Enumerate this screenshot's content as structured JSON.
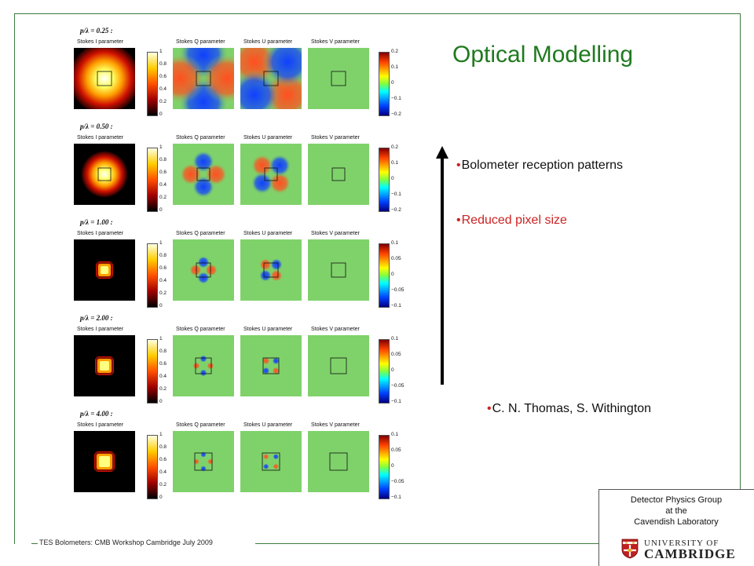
{
  "slide": {
    "title": "Optical Modelling",
    "bullets": [
      {
        "text": "Bolometer reception patterns",
        "style": "black"
      },
      {
        "text": "Reduced pixel size",
        "style": "red"
      },
      {
        "text": "C. N. Thomas, S. Withington",
        "style": "black"
      }
    ],
    "bullet_glyph": "•",
    "footer": "TES Bolometers: CMB Workshop Cambridge July 2009",
    "group": {
      "line1": "Detector Physics Group",
      "line2": "at  the",
      "line3": "Cavendish Laboratory"
    },
    "university": {
      "small": "UNIVERSITY OF",
      "big": "CAMBRIDGE"
    },
    "colors": {
      "title": "#1f7a1f",
      "accent": "#cc2222",
      "frame": "#3f7a3f"
    }
  },
  "figure": {
    "panel_titles": [
      "Stokes I parameter",
      "Stokes Q parameter",
      "Stokes U parameter",
      "Stokes V parameter"
    ],
    "rows": [
      {
        "label": "p/λ = 0.25 :",
        "ratio": 0.25,
        "i_ticks": [
          "1",
          "0.8",
          "0.6",
          "0.4",
          "0.2",
          "0"
        ],
        "qu_ticks": [
          "0.2",
          "0.1",
          "0",
          "−0.1",
          "−0.2"
        ]
      },
      {
        "label": "p/λ = 0.50 :",
        "ratio": 0.5,
        "i_ticks": [
          "1",
          "0.8",
          "0.6",
          "0.4",
          "0.2",
          "0"
        ],
        "qu_ticks": [
          "0.2",
          "0.1",
          "0",
          "−0.1",
          "−0.2"
        ]
      },
      {
        "label": "p/λ = 1.00 :",
        "ratio": 1.0,
        "i_ticks": [
          "1",
          "0.8",
          "0.6",
          "0.4",
          "0.2",
          "0"
        ],
        "qu_ticks": [
          "0.1",
          "0.05",
          "0",
          "−0.05",
          "−0.1"
        ]
      },
      {
        "label": "p/λ = 2.00 :",
        "ratio": 2.0,
        "i_ticks": [
          "1",
          "0.8",
          "0.6",
          "0.4",
          "0.2",
          "0"
        ],
        "qu_ticks": [
          "0.1",
          "0.05",
          "0",
          "−0.05",
          "−0.1"
        ]
      },
      {
        "label": "p/λ = 4.00 :",
        "ratio": 4.0,
        "i_ticks": [
          "1",
          "0.8",
          "0.6",
          "0.4",
          "0.2",
          "0"
        ],
        "qu_ticks": [
          "0.1",
          "0.05",
          "0",
          "−0.05",
          "−0.1"
        ]
      }
    ]
  }
}
